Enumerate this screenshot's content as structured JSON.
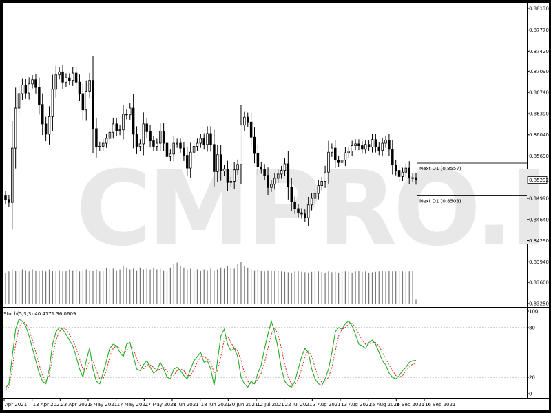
{
  "watermark": "CMPRO.IR",
  "colors": {
    "bull": "#ffffff",
    "bear": "#000000",
    "stoch_main": "#22aa22",
    "stoch_signal": "#dd2222",
    "level_line": "#888888",
    "volume": "#777777"
  },
  "price_axis": {
    "ticks": [
      "0.88130",
      "0.87770",
      "0.87420",
      "0.87090",
      "0.86740",
      "0.86390",
      "0.86040",
      "0.85690",
      "0.85292",
      "0.84990",
      "0.84640",
      "0.84290",
      "0.83940",
      "0.83600",
      "0.83250"
    ],
    "ylim": [
      0.8325,
      0.8813
    ],
    "current_price": "0.85292"
  },
  "levels": [
    {
      "name": "Next D1 (0.8557)",
      "value": 0.8557
    },
    {
      "name": "Next D1 (0.8503)",
      "value": 0.8503
    }
  ],
  "stoch": {
    "label": "Stoch(5,3,3) 40.4171 36.0609",
    "ticks": [
      "100",
      "80",
      "20",
      "0"
    ],
    "levels": [
      80,
      20
    ]
  },
  "date_axis": [
    "Apr 2021",
    "13 Apr 2021",
    "23 Apr 2021",
    "5 May 2021",
    "17 May 2021",
    "27 May 2021",
    "8 Jun 2021",
    "18 Jun 2021",
    "30 Jun 2021",
    "12 Jul 2021",
    "22 Jul 2021",
    "3 Aug 2021",
    "13 Aug 2021",
    "25 Aug 2021",
    "6 Sep 2021",
    "16 Sep 2021"
  ],
  "chart_data": {
    "type": "candlestick",
    "close": [
      0.8497,
      0.8492,
      0.8582,
      0.8648,
      0.8672,
      0.8686,
      0.8673,
      0.8688,
      0.8695,
      0.8682,
      0.8654,
      0.8622,
      0.8605,
      0.8634,
      0.8679,
      0.8703,
      0.8708,
      0.8691,
      0.8698,
      0.8694,
      0.8706,
      0.8691,
      0.8672,
      0.8645,
      0.8676,
      0.8694,
      0.8614,
      0.8584,
      0.8585,
      0.859,
      0.8598,
      0.8608,
      0.8622,
      0.8611,
      0.8612,
      0.8638,
      0.8637,
      0.8648,
      0.8605,
      0.8585,
      0.8589,
      0.8622,
      0.8609,
      0.8594,
      0.8585,
      0.859,
      0.861,
      0.859,
      0.8568,
      0.8572,
      0.859,
      0.859,
      0.8582,
      0.857,
      0.8549,
      0.8575,
      0.8585,
      0.859,
      0.8598,
      0.8588,
      0.8606,
      0.8588,
      0.8543,
      0.8571,
      0.8544,
      0.8547,
      0.8525,
      0.8527,
      0.8546,
      0.8555,
      0.862,
      0.8633,
      0.8625,
      0.86,
      0.8573,
      0.8551,
      0.8547,
      0.8537,
      0.8517,
      0.8522,
      0.8532,
      0.8539,
      0.8545,
      0.8556,
      0.8518,
      0.8493,
      0.8482,
      0.8475,
      0.8473,
      0.8467,
      0.8488,
      0.8499,
      0.8507,
      0.852,
      0.8527,
      0.8542,
      0.8575,
      0.8582,
      0.8562,
      0.8558,
      0.8562,
      0.8574,
      0.8577,
      0.8586,
      0.8589,
      0.8586,
      0.858,
      0.8588,
      0.8584,
      0.8596,
      0.8584,
      0.8578,
      0.859,
      0.8595,
      0.858,
      0.8554,
      0.8545,
      0.8535,
      0.8542,
      0.8549,
      0.8533,
      0.8533,
      0.8529
    ],
    "volume_scale": "relative",
    "volume": [
      0.8,
      0.85,
      0.9,
      0.87,
      0.85,
      0.9,
      0.88,
      0.85,
      0.9,
      0.87,
      0.86,
      0.88,
      0.85,
      0.9,
      0.86,
      0.87,
      0.88,
      0.85,
      0.86,
      0.9,
      0.88,
      0.92,
      0.85,
      0.86,
      0.9,
      0.88,
      0.87,
      0.9,
      0.85,
      0.86,
      0.95,
      0.9,
      0.92,
      0.88,
      0.9,
      1.0,
      0.95,
      0.9,
      0.92,
      0.88,
      0.95,
      0.9,
      0.92,
      0.9,
      0.95,
      0.9,
      0.92,
      0.88,
      0.85,
      0.95,
      1.05,
      1.08,
      1.0,
      0.95,
      0.9,
      0.92,
      0.88,
      0.9,
      0.86,
      0.9,
      0.88,
      0.92,
      0.88,
      0.9,
      0.95,
      0.92,
      1.0,
      0.95,
      0.92,
      1.05,
      1.1,
      1.0,
      0.95,
      0.9,
      0.88,
      0.9,
      0.86,
      0.85,
      0.88,
      0.86,
      0.87,
      0.86,
      0.85,
      0.84,
      0.83,
      0.82,
      0.85,
      0.86,
      0.84,
      0.83,
      0.82,
      0.84,
      0.86,
      0.85,
      0.84,
      0.82,
      0.85,
      0.83,
      0.84,
      0.82,
      0.86,
      0.85,
      0.84,
      0.82,
      0.85,
      0.86,
      0.84,
      0.85,
      0.82,
      0.83,
      0.84,
      0.85,
      0.86,
      0.85,
      0.86,
      0.85,
      0.85,
      0.86,
      0.85,
      0.84,
      0.85,
      0.86,
      0.1
    ],
    "stoch_main": [
      7,
      12,
      45,
      78,
      90,
      88,
      82,
      70,
      55,
      40,
      25,
      15,
      12,
      30,
      60,
      75,
      80,
      78,
      72,
      65,
      58,
      45,
      30,
      20,
      40,
      55,
      30,
      15,
      12,
      25,
      40,
      55,
      60,
      58,
      50,
      45,
      60,
      62,
      45,
      30,
      28,
      35,
      40,
      32,
      25,
      28,
      38,
      30,
      20,
      18,
      30,
      32,
      28,
      22,
      18,
      30,
      40,
      45,
      50,
      38,
      40,
      30,
      10,
      40,
      70,
      78,
      60,
      52,
      55,
      45,
      20,
      12,
      8,
      15,
      12,
      25,
      35,
      55,
      72,
      88,
      75,
      55,
      30,
      15,
      10,
      8,
      15,
      30,
      45,
      55,
      50,
      30,
      18,
      12,
      10,
      18,
      30,
      50,
      75,
      80,
      78,
      85,
      88,
      82,
      72,
      60,
      58,
      55,
      62,
      65,
      60,
      50,
      40,
      35,
      25,
      20,
      18,
      22,
      28,
      32,
      38,
      40,
      40.4
    ],
    "stoch_signal": [
      5,
      8,
      30,
      60,
      80,
      88,
      85,
      78,
      65,
      50,
      35,
      22,
      15,
      22,
      45,
      65,
      75,
      80,
      78,
      72,
      65,
      55,
      42,
      30,
      30,
      40,
      40,
      28,
      18,
      18,
      28,
      45,
      55,
      58,
      55,
      50,
      52,
      58,
      55,
      42,
      35,
      30,
      35,
      35,
      32,
      28,
      30,
      32,
      28,
      22,
      22,
      28,
      30,
      28,
      22,
      22,
      30,
      38,
      45,
      45,
      42,
      38,
      25,
      28,
      45,
      65,
      70,
      62,
      55,
      52,
      40,
      25,
      15,
      12,
      12,
      18,
      25,
      38,
      55,
      72,
      80,
      72,
      55,
      35,
      20,
      12,
      10,
      18,
      30,
      45,
      52,
      45,
      32,
      20,
      14,
      15,
      20,
      32,
      52,
      70,
      78,
      80,
      85,
      85,
      80,
      72,
      65,
      60,
      60,
      62,
      62,
      58,
      50,
      42,
      35,
      28,
      22,
      20,
      22,
      28,
      32,
      36,
      36.1
    ]
  }
}
